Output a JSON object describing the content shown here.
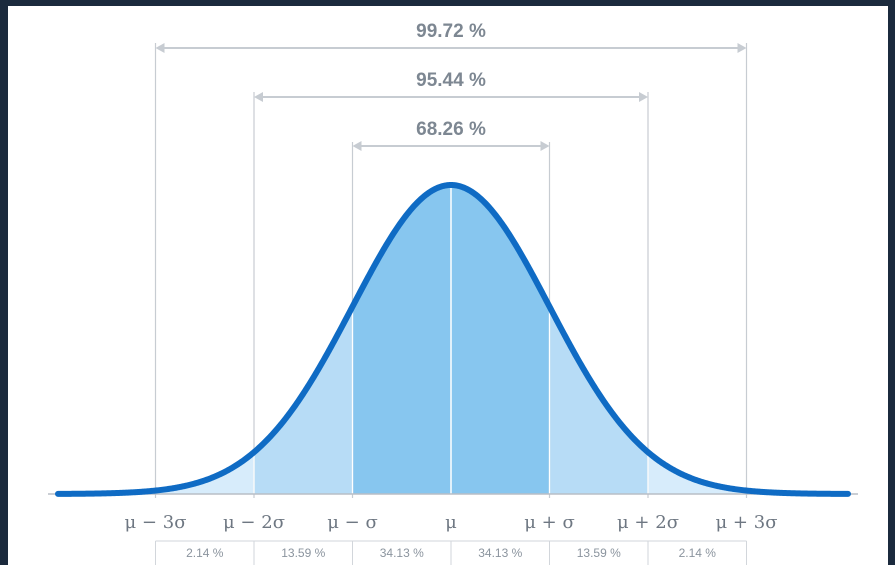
{
  "colors": {
    "background": "#1b2a3d",
    "canvas": "#ffffff",
    "curve": "#0f6bc4",
    "band_1sigma": "#87c6ef",
    "band_2sigma": "#b7dcf6",
    "band_3sigma": "#d7ecfb",
    "guide_lines": "#c7ccd2"
  },
  "ranges": [
    {
      "label": "99.72 %",
      "from_sigma": -3,
      "to_sigma": 3
    },
    {
      "label": "95.44 %",
      "from_sigma": -2,
      "to_sigma": 2
    },
    {
      "label": "68.26 %",
      "from_sigma": -1,
      "to_sigma": 1
    }
  ],
  "axis_labels": [
    {
      "label": "μ − 3σ",
      "sigma": -3
    },
    {
      "label": "μ − 2σ",
      "sigma": -2
    },
    {
      "label": "μ − σ",
      "sigma": -1
    },
    {
      "label": "μ",
      "sigma": 0
    },
    {
      "label": "μ + σ",
      "sigma": 1
    },
    {
      "label": "μ + 2σ",
      "sigma": 2
    },
    {
      "label": "μ + 3σ",
      "sigma": 3
    }
  ],
  "segments": [
    {
      "label": "2.14 %",
      "from_sigma": -3,
      "to_sigma": -2
    },
    {
      "label": "13.59 %",
      "from_sigma": -2,
      "to_sigma": -1
    },
    {
      "label": "34.13 %",
      "from_sigma": -1,
      "to_sigma": 0
    },
    {
      "label": "34.13 %",
      "from_sigma": 0,
      "to_sigma": 1
    },
    {
      "label": "13.59 %",
      "from_sigma": 1,
      "to_sigma": 2
    },
    {
      "label": "2.14 %",
      "from_sigma": 2,
      "to_sigma": 3
    }
  ]
}
